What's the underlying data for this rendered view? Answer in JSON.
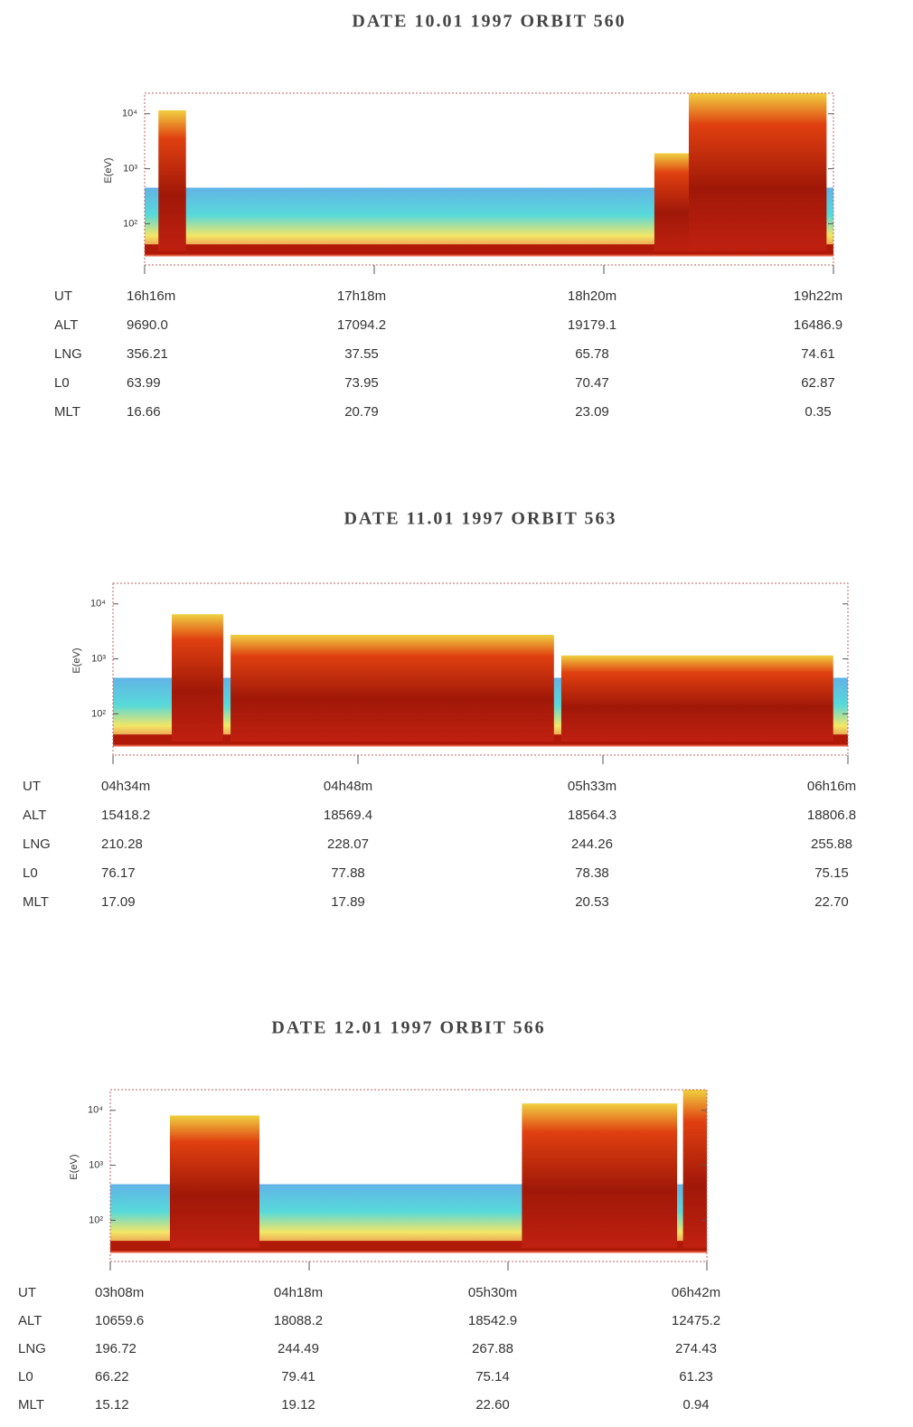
{
  "panels": [
    {
      "title": "DATE 10.01 1997 ORBIT 560",
      "y_label": "E(eV)",
      "y_ticks": [
        "10⁴",
        "10³",
        "10²"
      ],
      "row_labels": [
        "UT",
        "ALT",
        "LNG",
        "L0",
        "MLT"
      ],
      "columns": [
        [
          "16h16m",
          "9690.0",
          "356.21",
          "63.99",
          "16.66"
        ],
        [
          "17h18m",
          "17094.2",
          "37.55",
          "73.95",
          "20.79"
        ],
        [
          "18h20m",
          "19179.1",
          "65.78",
          "70.47",
          "23.09"
        ],
        [
          "19h22m",
          "16486.9",
          "74.61",
          "62.87",
          "0.35"
        ]
      ]
    },
    {
      "title": "DATE 11.01 1997 ORBIT 563",
      "y_label": "E(eV)",
      "y_ticks": [
        "10⁴",
        "10³",
        "10²"
      ],
      "row_labels": [
        "UT",
        "ALT",
        "LNG",
        "L0",
        "MLT"
      ],
      "columns": [
        [
          "04h34m",
          "15418.2",
          "210.28",
          "76.17",
          "17.09"
        ],
        [
          "04h48m",
          "18569.4",
          "228.07",
          "77.88",
          "17.89"
        ],
        [
          "05h33m",
          "18564.3",
          "244.26",
          "78.38",
          "20.53"
        ],
        [
          "06h16m",
          "18806.8",
          "255.88",
          "75.15",
          "22.70"
        ]
      ]
    },
    {
      "title": "DATE 12.01 1997 ORBIT 566",
      "y_label": "E(eV)",
      "y_ticks": [
        "10⁴",
        "10³",
        "10²"
      ],
      "row_labels": [
        "UT",
        "ALT",
        "LNG",
        "L0",
        "MLT"
      ],
      "columns": [
        [
          "03h08m",
          "10659.6",
          "196.72",
          "66.22",
          "15.12"
        ],
        [
          "04h18m",
          "18088.2",
          "244.49",
          "79.41",
          "19.12"
        ],
        [
          "05h30m",
          "18542.9",
          "267.88",
          "75.14",
          "22.60"
        ],
        [
          "06h42m",
          "12475.2",
          "274.43",
          "61.23",
          "0.94"
        ]
      ]
    }
  ]
}
